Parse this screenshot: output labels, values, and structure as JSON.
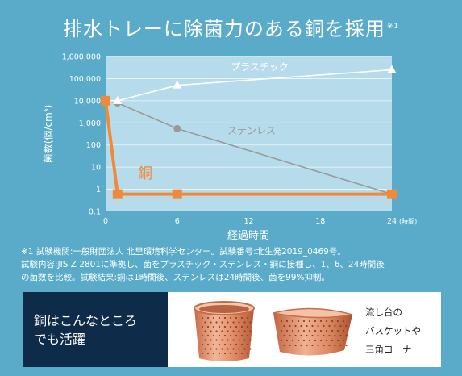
{
  "header": {
    "title": "排水トレーに除菌力のある銅を採用",
    "note_mark": "※1"
  },
  "chart_data": {
    "type": "line",
    "x_ticks": [
      0,
      6,
      12,
      18,
      24
    ],
    "x_tick_labels": [
      "0",
      "6",
      "12",
      "18",
      "24"
    ],
    "x_unit_label": "(時間)",
    "xlabel": "経過時間",
    "ylabel": "菌数(個/cm³)",
    "y_scale": "log",
    "ylim": [
      0.1,
      1000000
    ],
    "y_ticks": [
      0.1,
      1,
      10,
      100,
      1000,
      10000,
      100000,
      1000000
    ],
    "y_tick_labels": [
      "0.1",
      "1",
      "10",
      "100",
      "1,000",
      "10,000",
      "100,000",
      "1,000,000"
    ],
    "grid": "horizontal",
    "series": [
      {
        "name": "プラスチック",
        "x": [
          0,
          1,
          6,
          24
        ],
        "values": [
          10000,
          10000,
          50000,
          250000
        ],
        "color": "#ffffff",
        "marker": "triangle"
      },
      {
        "name": "ステンレス",
        "x": [
          0,
          1,
          6,
          24
        ],
        "values": [
          10000,
          8000,
          550,
          0.6
        ],
        "color": "#9a9a9a",
        "marker": "circle"
      },
      {
        "name": "銅",
        "x": [
          0,
          1,
          6,
          24
        ],
        "values": [
          10000,
          0.6,
          0.6,
          0.6
        ],
        "color": "#f08a3a",
        "marker": "square"
      }
    ]
  },
  "footnote": {
    "lines": [
      "※1 試験機関:一般財団法人 北里環境科学センター。試験番号:北生発2019_0469号。",
      "試験内容:JIS Z 2801に準拠し、菌をプラスチック・ステンレス・銅に接種し、1、6、24時間後",
      "の菌数を比較。試験結果:銅は1時間後、ステンレスは24時間後、菌を99%抑制。"
    ]
  },
  "usage": {
    "heading_line1": "銅はこんなところ",
    "heading_line2": "でも活躍",
    "caption_lines": [
      "流し台の",
      "バスケットや",
      "三角コーナー"
    ]
  }
}
